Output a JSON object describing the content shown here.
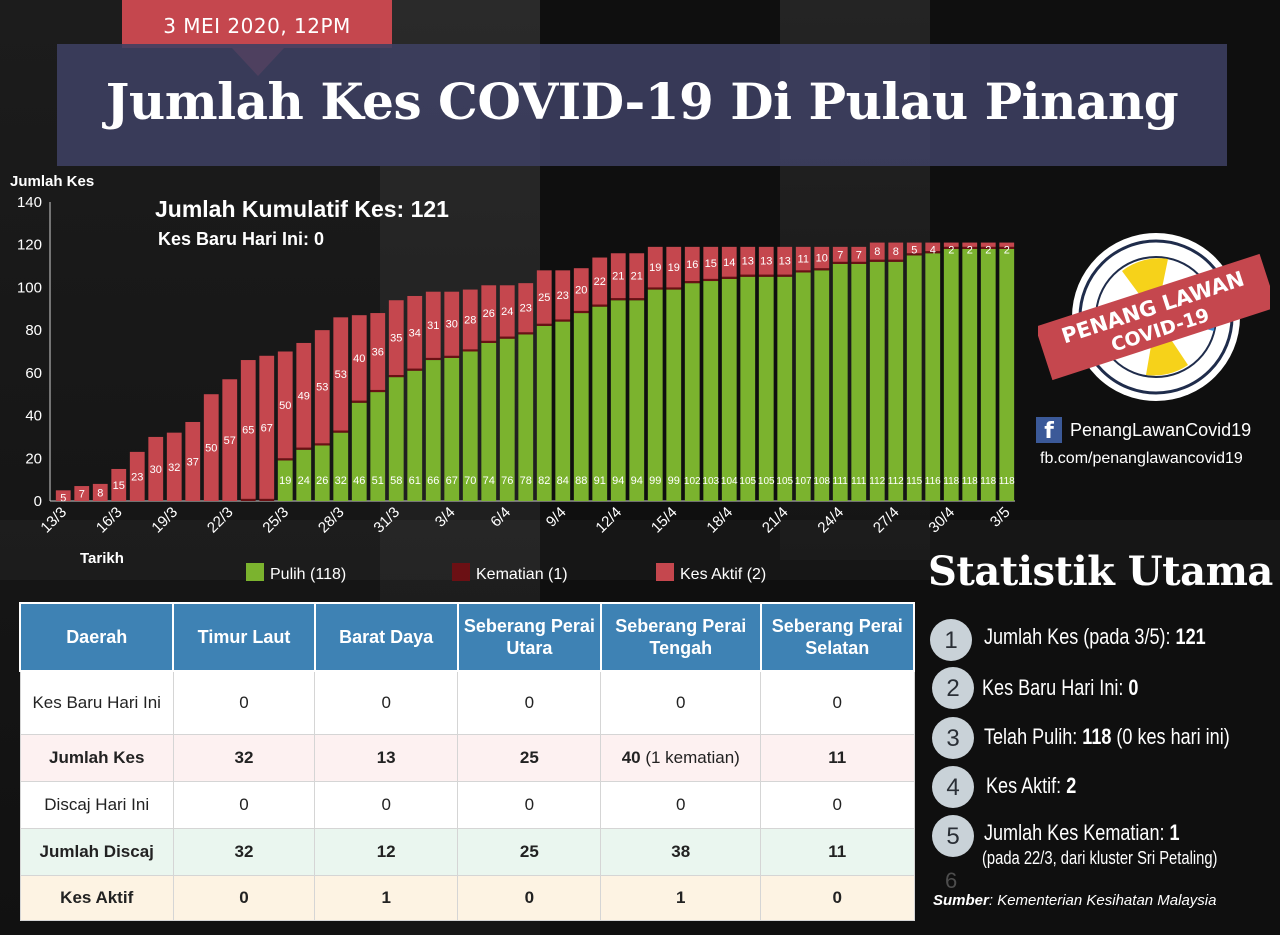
{
  "header": {
    "date": "3 MEI 2020, 12PM",
    "title": "Jumlah Kes COVID-19 Di Pulau Pinang"
  },
  "colors": {
    "recovered": "#7bb32e",
    "deaths": "#6b1014",
    "active": "#c5474e",
    "table_header": "#3e82b4",
    "ribbon": "#c5474e"
  },
  "chart_data": {
    "type": "bar",
    "stacked": true,
    "title": "Jumlah Kumulatif Kes: 121",
    "subtitle": "Kes Baru Hari Ini: 0",
    "ylabel": "Jumlah Kes",
    "xlabel": "Tarikh",
    "ylim": [
      0,
      140
    ],
    "yticks": [
      0,
      20,
      40,
      60,
      80,
      100,
      120,
      140
    ],
    "categories": [
      "13/3",
      "14/3",
      "15/3",
      "16/3",
      "17/3",
      "18/3",
      "19/3",
      "20/3",
      "21/3",
      "22/3",
      "23/3",
      "24/3",
      "25/3",
      "26/3",
      "27/3",
      "28/3",
      "29/3",
      "30/3",
      "31/3",
      "1/4",
      "2/4",
      "3/4",
      "4/4",
      "5/4",
      "6/4",
      "7/4",
      "8/4",
      "9/4",
      "10/4",
      "11/4",
      "12/4",
      "13/4",
      "14/4",
      "15/4",
      "16/4",
      "17/4",
      "18/4",
      "19/4",
      "20/4",
      "21/4",
      "22/4",
      "23/4",
      "24/4",
      "25/4",
      "26/4",
      "27/4",
      "28/4",
      "29/4",
      "30/4",
      "1/5",
      "2/5",
      "3/5"
    ],
    "xtick_labels": [
      "13/3",
      "16/3",
      "19/3",
      "22/3",
      "25/3",
      "28/3",
      "31/3",
      "3/4",
      "6/4",
      "9/4",
      "12/4",
      "15/4",
      "18/4",
      "21/4",
      "24/4",
      "27/4",
      "30/4",
      "3/5"
    ],
    "series": [
      {
        "name": "Pulih (118)",
        "key": "recovered",
        "values": [
          0,
          0,
          0,
          0,
          0,
          0,
          0,
          0,
          0,
          0,
          0,
          0,
          19,
          24,
          26,
          32,
          46,
          51,
          58,
          61,
          66,
          67,
          70,
          74,
          76,
          78,
          82,
          84,
          88,
          91,
          94,
          94,
          99,
          99,
          102,
          103,
          104,
          105,
          105,
          105,
          107,
          108,
          111,
          111,
          112,
          112,
          115,
          116,
          118,
          118,
          118,
          118
        ]
      },
      {
        "name": "Kematian (1)",
        "key": "deaths",
        "values": [
          0,
          0,
          0,
          0,
          0,
          0,
          0,
          0,
          0,
          0,
          1,
          1,
          1,
          1,
          1,
          1,
          1,
          1,
          1,
          1,
          1,
          1,
          1,
          1,
          1,
          1,
          1,
          1,
          1,
          1,
          1,
          1,
          1,
          1,
          1,
          1,
          1,
          1,
          1,
          1,
          1,
          1,
          1,
          1,
          1,
          1,
          1,
          1,
          1,
          1,
          1,
          1
        ]
      },
      {
        "name": "Kes Aktif (2)",
        "key": "active",
        "values": [
          5,
          7,
          8,
          15,
          23,
          30,
          32,
          37,
          50,
          57,
          65,
          67,
          50,
          49,
          53,
          53,
          40,
          36,
          35,
          34,
          31,
          30,
          28,
          26,
          24,
          23,
          25,
          23,
          20,
          22,
          21,
          21,
          19,
          19,
          16,
          15,
          14,
          13,
          13,
          13,
          11,
          10,
          7,
          7,
          8,
          8,
          5,
          4,
          2,
          2,
          2,
          2
        ]
      }
    ],
    "legend_position": "bottom",
    "grid": false
  },
  "logo": {
    "line1": "PENANG LAWAN",
    "line2": "COVID-19"
  },
  "social": {
    "fb_icon": "f",
    "fb_name": "PenangLawanCovid19",
    "fb_url": "fb.com/penanglawancovid19"
  },
  "stats": {
    "title": "Statistik Utama",
    "items": [
      {
        "num": "1",
        "label": "Jumlah Kes (pada 3/5):",
        "value": "121",
        "extra": ""
      },
      {
        "num": "2",
        "label": "Kes Baru Hari Ini:",
        "value": "0",
        "extra": ""
      },
      {
        "num": "3",
        "label": "Telah Pulih:",
        "value": "118",
        "extra": "(0 kes hari ini)"
      },
      {
        "num": "4",
        "label": "Kes Aktif:",
        "value": "2",
        "extra": ""
      },
      {
        "num": "5",
        "label": "Jumlah Kes Kematian:",
        "value": "1",
        "extra": "(pada 22/3, dari kluster Sri Petaling)"
      }
    ],
    "sixth_num": "6",
    "source_label": "Sumber",
    "source_text": ": Kementerian Kesihatan Malaysia"
  },
  "table": {
    "headers": [
      "Daerah",
      "Timur Laut",
      "Barat Daya",
      "Seberang Perai Utara",
      "Seberang Perai Tengah",
      "Seberang Perai Selatan"
    ],
    "rows": [
      {
        "label": "Kes Baru Hari Ini",
        "values": [
          "0",
          "0",
          "0",
          "0",
          "0"
        ],
        "note": ""
      },
      {
        "label": "Jumlah Kes",
        "values": [
          "32",
          "13",
          "25",
          "40",
          "11"
        ],
        "note": "(1 kematian)"
      },
      {
        "label": "Discaj Hari Ini",
        "values": [
          "0",
          "0",
          "0",
          "0",
          "0"
        ],
        "note": ""
      },
      {
        "label": "Jumlah Discaj",
        "values": [
          "32",
          "12",
          "25",
          "38",
          "11"
        ],
        "note": ""
      },
      {
        "label": "Kes Aktif",
        "values": [
          "0",
          "1",
          "0",
          "1",
          "0"
        ],
        "note": ""
      }
    ]
  }
}
